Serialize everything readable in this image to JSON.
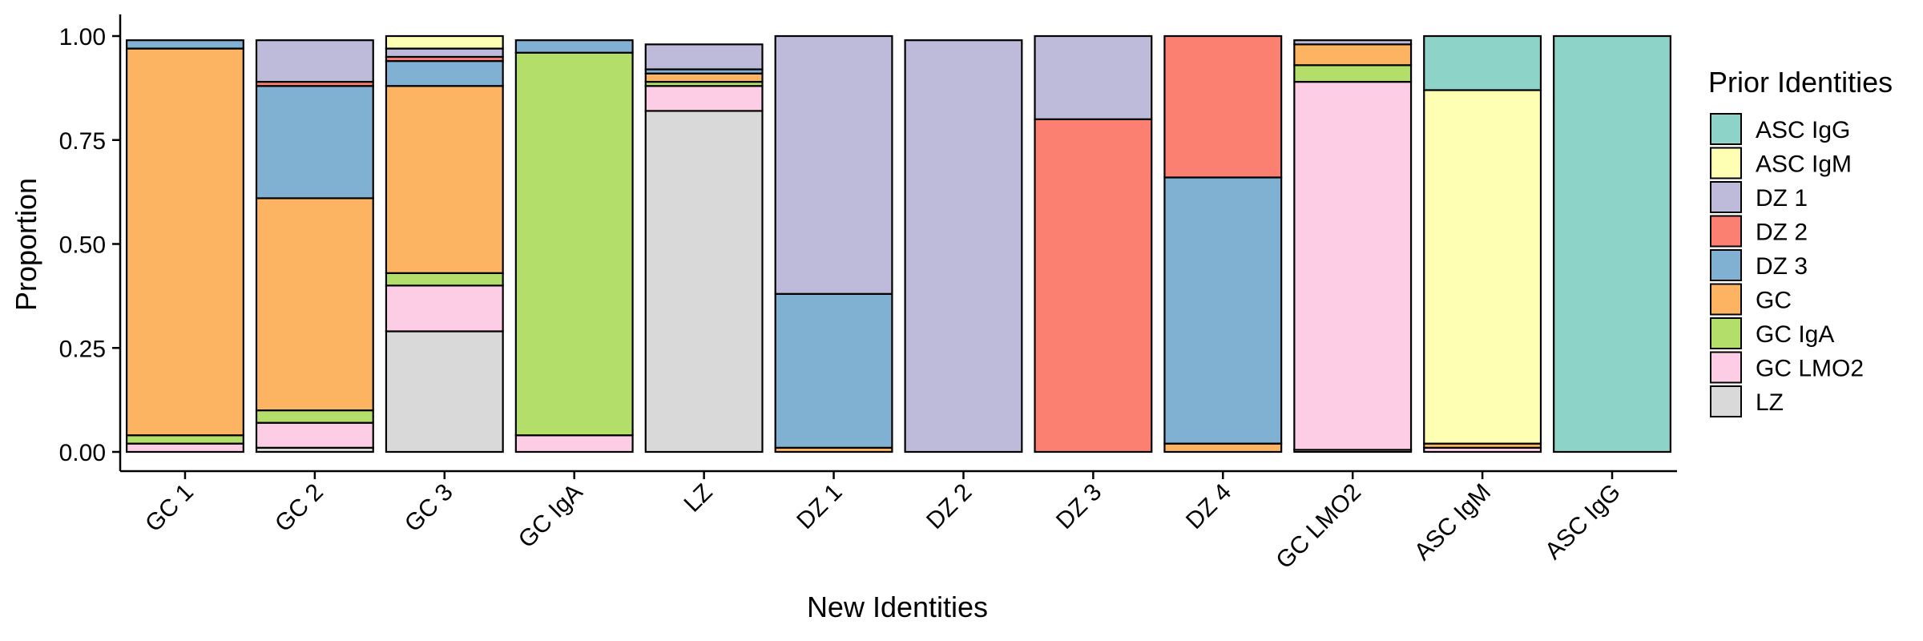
{
  "chart_data": {
    "type": "bar",
    "stacked": true,
    "xlabel": "New Identities",
    "ylabel": "Proportion",
    "ylim": [
      0,
      1
    ],
    "yticks": [
      "0.00",
      "0.25",
      "0.50",
      "0.75",
      "1.00"
    ],
    "categories": [
      "GC 1",
      "GC 2",
      "GC 3",
      "GC IgA",
      "LZ",
      "DZ 1",
      "DZ 2",
      "DZ 3",
      "DZ 4",
      "GC LMO2",
      "ASC IgM",
      "ASC IgG"
    ],
    "legend_title": "Prior Identities",
    "legend_position": "right",
    "grid": false,
    "series": [
      {
        "name": "LZ",
        "color": "#D9D9D9",
        "values": [
          0.0,
          0.01,
          0.29,
          0.0,
          0.82,
          0.0,
          0.0,
          0.0,
          0.0,
          0.005,
          0.0,
          0.0
        ]
      },
      {
        "name": "GC LMO2",
        "color": "#FCCDE5",
        "values": [
          0.02,
          0.06,
          0.11,
          0.04,
          0.06,
          0.0,
          0.0,
          0.0,
          0.0,
          0.885,
          0.01,
          0.0
        ]
      },
      {
        "name": "GC IgA",
        "color": "#B3DE69",
        "values": [
          0.02,
          0.03,
          0.03,
          0.92,
          0.01,
          0.0,
          0.0,
          0.0,
          0.0,
          0.04,
          0.0,
          0.0
        ]
      },
      {
        "name": "GC",
        "color": "#FDB462",
        "values": [
          0.93,
          0.51,
          0.45,
          0.0,
          0.02,
          0.01,
          0.0,
          0.0,
          0.02,
          0.05,
          0.01,
          0.0
        ]
      },
      {
        "name": "DZ 3",
        "color": "#80B1D3",
        "values": [
          0.02,
          0.27,
          0.06,
          0.03,
          0.01,
          0.37,
          0.0,
          0.0,
          0.64,
          0.0,
          0.0,
          0.0
        ]
      },
      {
        "name": "DZ 2",
        "color": "#FB8072",
        "values": [
          0.0,
          0.01,
          0.01,
          0.0,
          0.0,
          0.0,
          0.0,
          0.8,
          0.34,
          0.0,
          0.0,
          0.0
        ]
      },
      {
        "name": "DZ 1",
        "color": "#BEBADA",
        "values": [
          0.0,
          0.1,
          0.02,
          0.0,
          0.06,
          0.62,
          0.99,
          0.2,
          0.0,
          0.01,
          0.0,
          0.0
        ]
      },
      {
        "name": "ASC IgM",
        "color": "#FFFFB3",
        "values": [
          0.0,
          0.0,
          0.03,
          0.0,
          0.0,
          0.0,
          0.0,
          0.0,
          0.0,
          0.0,
          0.85,
          0.0
        ]
      },
      {
        "name": "ASC IgG",
        "color": "#8DD3C7",
        "values": [
          0.0,
          0.0,
          0.0,
          0.0,
          0.0,
          0.0,
          0.0,
          0.0,
          0.0,
          0.0,
          0.13,
          1.0
        ]
      }
    ],
    "legend_order": [
      "ASC IgG",
      "ASC IgM",
      "DZ 1",
      "DZ 2",
      "DZ 3",
      "GC",
      "GC IgA",
      "GC LMO2",
      "LZ"
    ]
  }
}
